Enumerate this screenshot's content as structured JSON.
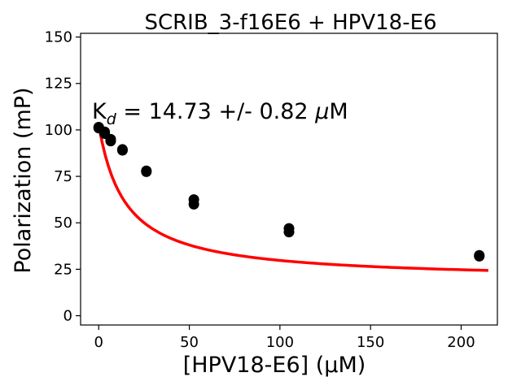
{
  "chart_data": {
    "type": "scatter",
    "title": "SCRIB_3-f16E6 + HPV18-E6",
    "xlabel": "[HPV18-E6] (μM)",
    "ylabel": "Polarization (mP)",
    "xlim": [
      -10,
      220
    ],
    "ylim": [
      -5,
      152
    ],
    "xticks": [
      0,
      50,
      100,
      150,
      200
    ],
    "yticks": [
      0,
      25,
      50,
      75,
      100,
      125,
      150
    ],
    "grid": false,
    "annotation": {
      "prefix": "K",
      "subscript": "d",
      "text": " = 14.73 +/- 0.82 ",
      "unit_mu": "μ",
      "unit": "M"
    },
    "points": {
      "color": "#000000",
      "x": [
        0,
        0,
        3.3,
        3.3,
        6.6,
        6.6,
        13.1,
        13.1,
        26.3,
        26.3,
        52.5,
        52.5,
        105,
        105,
        210,
        210
      ],
      "y": [
        101.5,
        101,
        99,
        98,
        95,
        94,
        89.5,
        89,
        78,
        77.5,
        62.5,
        60,
        47,
        45,
        32.5,
        32
      ]
    },
    "fit": {
      "color": "#ff0000",
      "x_range": [
        0,
        215
      ],
      "top": 102.8,
      "bottom": 19,
      "kd": 14.73
    }
  }
}
